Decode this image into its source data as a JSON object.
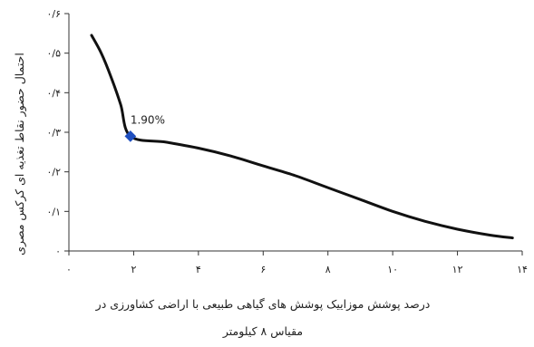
{
  "chart_data": {
    "type": "line",
    "title": "",
    "xlabel_lines": [
      "درصد پوشش موزاییک پوشش های گیاهی طبیعی  با اراضی کشاورزی در",
      "مقیاس ۸ کیلومتر"
    ],
    "ylabel": "احتمال حضور نقاط تغذیه ای کرکس مصری",
    "xlim": [
      0,
      14
    ],
    "ylim": [
      0,
      0.6
    ],
    "x_ticks": [
      0,
      2,
      4,
      6,
      8,
      10,
      12,
      14
    ],
    "x_tick_labels": [
      "۰",
      "۲",
      "۴",
      "۶",
      "۸",
      "۱۰",
      "۱۲",
      "۱۴"
    ],
    "y_ticks": [
      0,
      0.1,
      0.2,
      0.3,
      0.4,
      0.5,
      0.6
    ],
    "y_tick_labels": [
      "۰",
      "۰/۱",
      "۰/۲",
      "۰/۳",
      "۰/۴",
      "۰/۵",
      "۰/۶"
    ],
    "grid": false,
    "line_color": "#111111",
    "marker_color": "#1f4fbf",
    "series": [
      {
        "x": [
          0.7,
          1.0,
          1.3,
          1.6,
          1.9,
          3,
          4,
          5,
          6,
          7,
          8,
          9,
          10,
          11,
          12,
          13,
          13.7
        ],
        "y": [
          0.545,
          0.5,
          0.44,
          0.37,
          0.29,
          0.275,
          0.26,
          0.24,
          0.215,
          0.19,
          0.16,
          0.13,
          0.1,
          0.075,
          0.055,
          0.04,
          0.033
        ]
      }
    ],
    "marker": {
      "x": 1.9,
      "y": 0.29,
      "label": "1.90%"
    }
  }
}
